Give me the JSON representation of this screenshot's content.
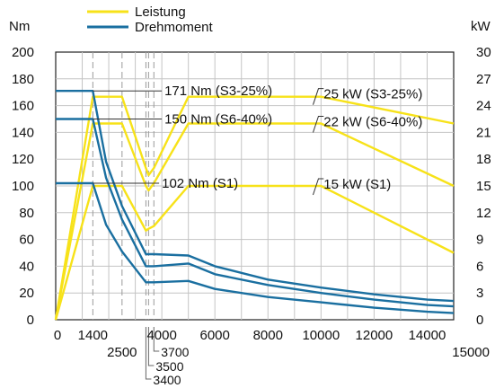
{
  "chart_data": {
    "type": "line",
    "y_left_unit": "Nm",
    "y_right_unit": "kW",
    "x_range": [
      0,
      15000
    ],
    "y_left_range": [
      0,
      200
    ],
    "y_right_range": [
      0,
      30
    ],
    "grid": true,
    "legend_position": "top",
    "x_ticks": [
      {
        "value": 0,
        "label": "0",
        "row": 0
      },
      {
        "value": 1400,
        "label": "1400",
        "row": 0
      },
      {
        "value": 2500,
        "label": "2500",
        "row": 1
      },
      {
        "value": 3400,
        "label": "3400",
        "row": 4
      },
      {
        "value": 3500,
        "label": "3500",
        "row": 3
      },
      {
        "value": 3700,
        "label": "3700",
        "row": 2
      },
      {
        "value": 4000,
        "label": "4000",
        "row": 0
      },
      {
        "value": 6000,
        "label": "6000",
        "row": 0
      },
      {
        "value": 8000,
        "label": "8000",
        "row": 0
      },
      {
        "value": 10000,
        "label": "10000",
        "row": 0
      },
      {
        "value": 12000,
        "label": "12000",
        "row": 0
      },
      {
        "value": 14000,
        "label": "14000",
        "row": 0
      },
      {
        "value": 15000,
        "label": "15000",
        "row": 1
      }
    ],
    "y_left_ticks": [
      0,
      20,
      40,
      60,
      80,
      100,
      120,
      140,
      160,
      180,
      200
    ],
    "y_right_ticks": [
      0,
      3,
      6,
      9,
      12,
      15,
      18,
      21,
      24,
      27,
      30
    ],
    "legend": [
      {
        "label": "Leistung",
        "color": "#F7E219"
      },
      {
        "label": "Drehmoment",
        "color": "#1A6FA0"
      }
    ],
    "series": [
      {
        "name": "Leistung",
        "axis": "right",
        "color": "#F7E219",
        "points": [
          [
            0,
            0
          ],
          [
            1400,
            25
          ],
          [
            2500,
            25
          ],
          [
            3400,
            17
          ],
          [
            3500,
            16.2
          ],
          [
            3700,
            17
          ],
          [
            5000,
            25
          ],
          [
            10000,
            25
          ],
          [
            15000,
            22
          ]
        ]
      },
      {
        "name": "Leistung",
        "axis": "right",
        "color": "#F7E219",
        "points": [
          [
            0,
            0
          ],
          [
            1400,
            22
          ],
          [
            2500,
            22
          ],
          [
            3400,
            15
          ],
          [
            3500,
            14.5
          ],
          [
            3700,
            15.3
          ],
          [
            5000,
            22
          ],
          [
            10000,
            22
          ],
          [
            15000,
            15
          ]
        ]
      },
      {
        "name": "Leistung",
        "axis": "right",
        "color": "#F7E219",
        "points": [
          [
            0,
            0
          ],
          [
            1400,
            15
          ],
          [
            2500,
            15
          ],
          [
            3400,
            10
          ],
          [
            3500,
            10.2
          ],
          [
            3700,
            10.5
          ],
          [
            5000,
            15
          ],
          [
            10000,
            15
          ],
          [
            15000,
            7.5
          ]
        ]
      },
      {
        "name": "Drehmoment",
        "axis": "left",
        "color": "#1A6FA0",
        "points": [
          [
            0,
            171
          ],
          [
            1300,
            171
          ],
          [
            1400,
            171
          ],
          [
            1900,
            118
          ],
          [
            2500,
            85
          ],
          [
            3400,
            49
          ],
          [
            3700,
            49
          ],
          [
            5000,
            48
          ],
          [
            6000,
            40
          ],
          [
            8000,
            30
          ],
          [
            10000,
            24
          ],
          [
            12000,
            19
          ],
          [
            14000,
            15
          ],
          [
            15000,
            14
          ]
        ]
      },
      {
        "name": "Drehmoment",
        "axis": "left",
        "color": "#1A6FA0",
        "points": [
          [
            0,
            150
          ],
          [
            1300,
            150
          ],
          [
            1400,
            150
          ],
          [
            1900,
            106
          ],
          [
            2500,
            75
          ],
          [
            3400,
            40
          ],
          [
            3700,
            40
          ],
          [
            5000,
            42
          ],
          [
            6000,
            34
          ],
          [
            8000,
            26
          ],
          [
            10000,
            20
          ],
          [
            12000,
            15
          ],
          [
            14000,
            11
          ],
          [
            15000,
            10
          ]
        ]
      },
      {
        "name": "Drehmoment",
        "axis": "left",
        "color": "#1A6FA0",
        "points": [
          [
            0,
            102
          ],
          [
            1300,
            102
          ],
          [
            1400,
            102
          ],
          [
            1900,
            71
          ],
          [
            2500,
            51
          ],
          [
            3400,
            28
          ],
          [
            3700,
            28
          ],
          [
            5000,
            29
          ],
          [
            6000,
            23
          ],
          [
            8000,
            17
          ],
          [
            10000,
            13
          ],
          [
            12000,
            9
          ],
          [
            14000,
            6
          ],
          [
            15000,
            5
          ]
        ]
      }
    ],
    "annotations": [
      {
        "text": "171 Nm (S3-25%)",
        "axis": "left",
        "x": 4100,
        "y": 171,
        "leader_from_x": 1400
      },
      {
        "text": "150 Nm (S6-40%)",
        "axis": "left",
        "x": 4100,
        "y": 150,
        "leader_from_x": 1400
      },
      {
        "text": "102 Nm (S1)",
        "axis": "left",
        "x": 4000,
        "y": 102,
        "leader_from_x": 1400
      },
      {
        "text": "25 kW (S3-25%)",
        "axis": "right",
        "x": 10100,
        "y": 25.3,
        "leader_from_x": 9700
      },
      {
        "text": "22 kW (S6-40%)",
        "axis": "right",
        "x": 10100,
        "y": 22.2,
        "leader_from_x": 9700
      },
      {
        "text": "15 kW (S1)",
        "axis": "right",
        "x": 10100,
        "y": 15.2,
        "leader_from_x": 9700
      }
    ]
  }
}
